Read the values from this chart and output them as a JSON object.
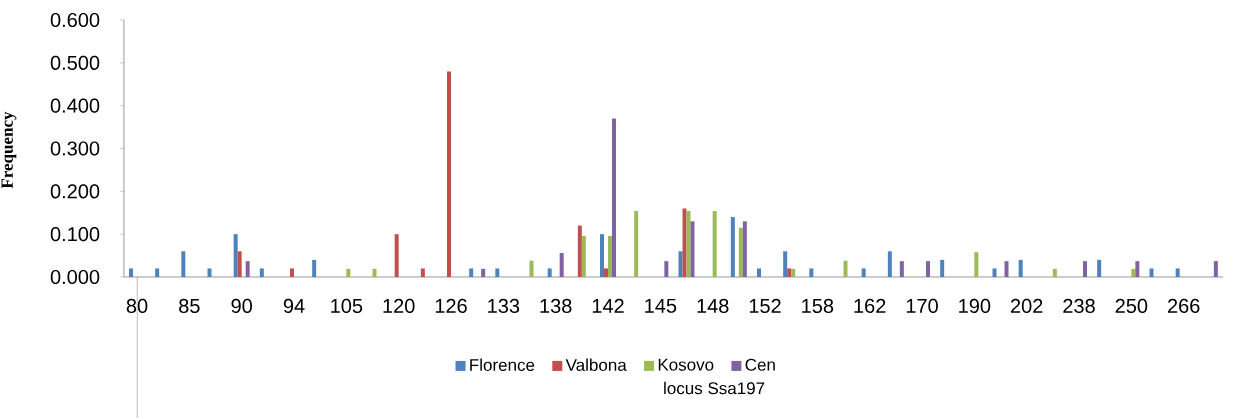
{
  "chart_data": {
    "type": "bar",
    "xlabel": "locus Ssa197",
    "ylabel": "Frequency",
    "categories": [
      "80",
      null,
      "85",
      null,
      "90",
      null,
      "94",
      null,
      "105",
      null,
      "120",
      null,
      "126",
      null,
      "133",
      null,
      "138",
      null,
      "142",
      null,
      "145",
      null,
      "148",
      null,
      "152",
      null,
      "158",
      null,
      "162",
      null,
      "170",
      null,
      "190",
      null,
      "202",
      null,
      "238",
      null,
      "250",
      null,
      "266",
      null
    ],
    "series": [
      {
        "name": "Florence",
        "color": "#4f81bd",
        "values": [
          0.02,
          0.02,
          0.06,
          0.02,
          0.1,
          0.02,
          null,
          0.04,
          null,
          null,
          null,
          null,
          null,
          0.02,
          0.02,
          null,
          0.02,
          null,
          0.1,
          null,
          null,
          0.06,
          null,
          0.14,
          0.02,
          0.06,
          0.02,
          null,
          0.02,
          0.06,
          null,
          0.04,
          null,
          0.02,
          0.04,
          null,
          null,
          0.04,
          null,
          0.02,
          0.02,
          null
        ]
      },
      {
        "name": "Valbona",
        "color": "#c0504d",
        "values": [
          null,
          null,
          null,
          null,
          0.06,
          null,
          0.02,
          null,
          null,
          null,
          0.1,
          0.02,
          0.48,
          null,
          null,
          null,
          null,
          0.12,
          0.02,
          null,
          null,
          0.16,
          null,
          null,
          null,
          0.02,
          null,
          null,
          null,
          null,
          null,
          null,
          null,
          null,
          null,
          null,
          null,
          null,
          null,
          null,
          null,
          null
        ]
      },
      {
        "name": "Kosovo",
        "color": "#9bbb59",
        "values": [
          null,
          null,
          null,
          null,
          null,
          null,
          null,
          null,
          0.019,
          0.019,
          null,
          null,
          null,
          null,
          null,
          0.038,
          null,
          0.096,
          0.096,
          0.154,
          null,
          0.154,
          0.154,
          0.115,
          null,
          0.019,
          null,
          0.038,
          null,
          null,
          null,
          null,
          0.058,
          null,
          null,
          0.019,
          null,
          null,
          0.019,
          null,
          null,
          null
        ]
      },
      {
        "name": "Cen",
        "color": "#8064a2",
        "values": [
          null,
          null,
          null,
          null,
          0.037,
          null,
          null,
          null,
          null,
          null,
          null,
          null,
          null,
          0.019,
          null,
          null,
          0.056,
          null,
          0.37,
          null,
          0.037,
          0.13,
          null,
          0.13,
          null,
          null,
          null,
          null,
          null,
          0.037,
          0.037,
          null,
          null,
          0.037,
          null,
          null,
          0.037,
          null,
          0.037,
          null,
          null,
          0.037
        ]
      }
    ],
    "ylim": [
      0,
      0.6
    ],
    "yticks": [
      {
        "value": 0,
        "label": "0.000"
      },
      {
        "value": 0.1,
        "label": "0.100"
      },
      {
        "value": 0.2,
        "label": "0.200"
      },
      {
        "value": 0.3,
        "label": "0.300"
      },
      {
        "value": 0.4,
        "label": "0.400"
      },
      {
        "value": 0.5,
        "label": "0.500"
      },
      {
        "value": 0.6,
        "label": "0.600"
      }
    ],
    "legend": "bottom"
  }
}
